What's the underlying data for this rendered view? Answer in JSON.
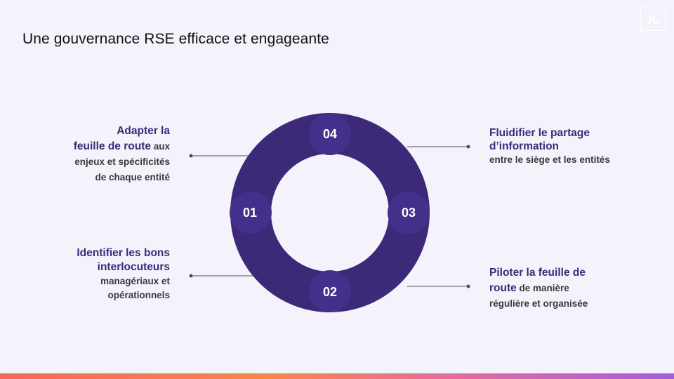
{
  "title": "Une gouvernance RSE efficace et engageante",
  "logo": {
    "text": "JL",
    "icon": "brand-logo-icon"
  },
  "ring": {
    "color": "#3c2a78",
    "segments": [
      {
        "number": "01",
        "position": "left"
      },
      {
        "number": "02",
        "position": "bottom"
      },
      {
        "number": "03",
        "position": "right"
      },
      {
        "number": "04",
        "position": "top"
      }
    ]
  },
  "items": {
    "item1": {
      "highlight_a": "Adapter la",
      "highlight_b": "feuille de route",
      "rest_a": " aux",
      "rest_b": "enjeux et spécificités",
      "rest_c": "de chaque entité"
    },
    "item2": {
      "highlight_a": "Identifier les bons",
      "highlight_b": "interlocuteurs",
      "rest_a": "managériaux et",
      "rest_b": "opérationnels"
    },
    "item3": {
      "highlight_a": "Fluidifier le partage",
      "highlight_b": "d’information",
      "rest_a": "entre le siège et les entités"
    },
    "item4": {
      "highlight_a": "Piloter la feuille de",
      "highlight_b": "route",
      "rest_a": " de manière",
      "rest_b": "régulière et organisée"
    }
  },
  "colors": {
    "accent": "#3c2a78",
    "background": "#f4f2fb"
  }
}
